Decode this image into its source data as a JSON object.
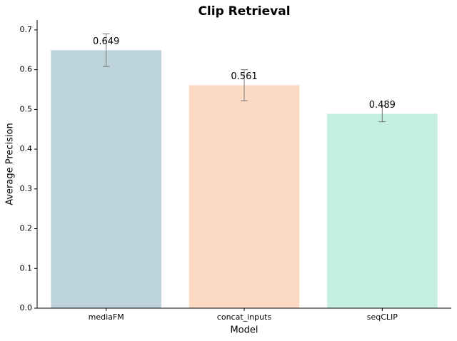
{
  "chart_data": {
    "type": "bar",
    "title": "Clip Retrieval",
    "x_label": "Model",
    "y_label": "Average Precision",
    "categories": [
      "mediaFM",
      "concat_inputs",
      "seqCLIP"
    ],
    "values": [
      0.649,
      0.561,
      0.489
    ],
    "errors": [
      0.041,
      0.039,
      0.02
    ],
    "colors": [
      "#bcd4da",
      "#fddac4",
      "#c4eee0"
    ],
    "ylim": [
      0,
      0.725
    ],
    "yticks": [
      {
        "value": 0,
        "label": "0.0"
      },
      0.1,
      0.2,
      0.3,
      0.4,
      0.5,
      0.6,
      0.7
    ]
  }
}
